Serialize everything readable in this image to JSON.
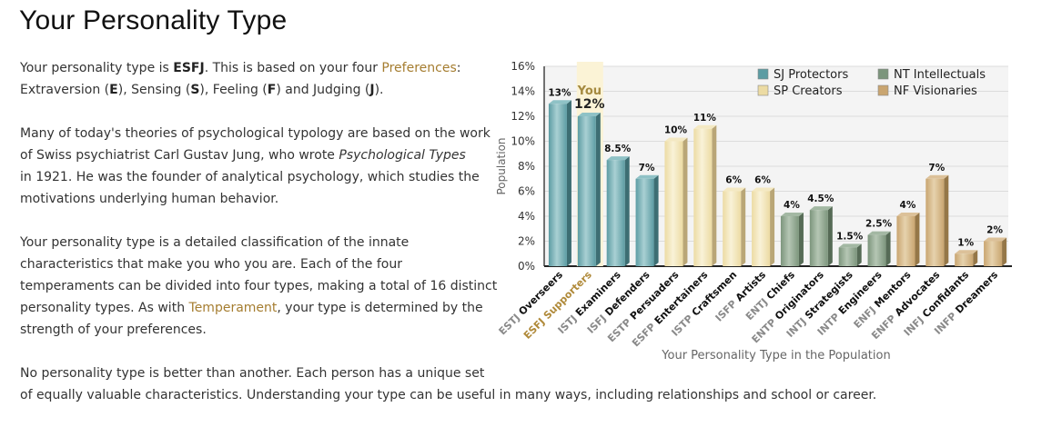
{
  "page": {
    "title": "Your Personality Type"
  },
  "intro": {
    "p1_a": "Your personality type is ",
    "type": "ESFJ",
    "p1_b": ". This is based on your four ",
    "preferences_link": "Preferences",
    "p1_c": ":",
    "p1_d": "Extraversion (",
    "e": "E",
    "p1_e": "), Sensing (",
    "s": "S",
    "p1_f": "), Feeling (",
    "f": "F",
    "p1_g": ") and Judging (",
    "j": "J",
    "p1_h": ").",
    "p2_l1": "Many of today's theories of psychological typology are based on the work",
    "p2_l2a": "of Swiss psychiatrist Carl Gustav Jung, who wrote ",
    "p2_book": "Psychological Types",
    "p2_l3": "in 1921. He was the founder of analytical psychology, which studies the",
    "p2_l4": "motivations underlying human behavior.",
    "p3_l1": "Your personality type is a detailed classification of the innate",
    "p3_l2": "characteristics that make you who you are. Each of the four",
    "p3_l3": "temperaments can be divided into four types, making a total of 16 distinct",
    "p3_l4a": "personality types. As with ",
    "temperament_link": "Temperament",
    "p3_l4b": ", your type is determined by the",
    "p3_l5": "strength of your preferences.",
    "p4_l1": "No personality type is better than another. Each person has a unique set",
    "p4_l2": "of equally valuable characteristics. Understanding your type can be useful in many ways, including relationships and school or career."
  },
  "chart_data": {
    "type": "bar",
    "xlabel": "Your Personality Type in the Population",
    "ylabel": "Population",
    "ylim": [
      0,
      16
    ],
    "yticks": [
      "0%",
      "2%",
      "4%",
      "6%",
      "8%",
      "10%",
      "12%",
      "14%",
      "16%"
    ],
    "grid": true,
    "legend_position": "top-right",
    "legend": [
      {
        "name": "SJ Protectors",
        "color": "#5c9ca3"
      },
      {
        "name": "NT Intellectuals",
        "color": "#7c957c"
      },
      {
        "name": "SP Creators",
        "color": "#ecdba3"
      },
      {
        "name": "NF Visionaries",
        "color": "#c9a570"
      }
    ],
    "you_label": "You",
    "highlight_index": 1,
    "categories": [
      {
        "code": "ESTJ",
        "name": "Overseers",
        "group": "SJ"
      },
      {
        "code": "ESFJ",
        "name": "Supporters",
        "group": "SJ"
      },
      {
        "code": "ISTJ",
        "name": "Examiners",
        "group": "SJ"
      },
      {
        "code": "ISFJ",
        "name": "Defenders",
        "group": "SJ"
      },
      {
        "code": "ESTP",
        "name": "Persuaders",
        "group": "SP"
      },
      {
        "code": "ESFP",
        "name": "Entertainers",
        "group": "SP"
      },
      {
        "code": "ISTP",
        "name": "Craftsmen",
        "group": "SP"
      },
      {
        "code": "ISFP",
        "name": "Artists",
        "group": "SP"
      },
      {
        "code": "ENTJ",
        "name": "Chiefs",
        "group": "NT"
      },
      {
        "code": "ENTP",
        "name": "Originators",
        "group": "NT"
      },
      {
        "code": "INTJ",
        "name": "Strategists",
        "group": "NT"
      },
      {
        "code": "INTP",
        "name": "Engineers",
        "group": "NT"
      },
      {
        "code": "ENFJ",
        "name": "Mentors",
        "group": "NF"
      },
      {
        "code": "ENFP",
        "name": "Advocates",
        "group": "NF"
      },
      {
        "code": "INFJ",
        "name": "Confidants",
        "group": "NF"
      },
      {
        "code": "INFP",
        "name": "Dreamers",
        "group": "NF"
      }
    ],
    "values": [
      13,
      12,
      8.5,
      7,
      10,
      11,
      6,
      6,
      4,
      4.5,
      1.5,
      2.5,
      4,
      7,
      1,
      2
    ],
    "value_labels": [
      "13%",
      "12%",
      "8.5%",
      "7%",
      "10%",
      "11%",
      "6%",
      "6%",
      "4%",
      "4.5%",
      "1.5%",
      "2.5%",
      "4%",
      "7%",
      "1%",
      "2%"
    ],
    "group_colors": {
      "SJ": {
        "front": "#5c9ca3",
        "light": "#a9d0d3",
        "side": "#3d6e73",
        "top": "#8fc2c6"
      },
      "SP": {
        "front": "#ecdba3",
        "light": "#f9f2d8",
        "side": "#b9a677",
        "top": "#f4e9c3"
      },
      "NT": {
        "front": "#7c957c",
        "light": "#b5c6b4",
        "side": "#566b56",
        "top": "#a3b8a3"
      },
      "NF": {
        "front": "#c9a570",
        "light": "#e6d2ad",
        "side": "#957748",
        "top": "#dcc199"
      }
    }
  }
}
